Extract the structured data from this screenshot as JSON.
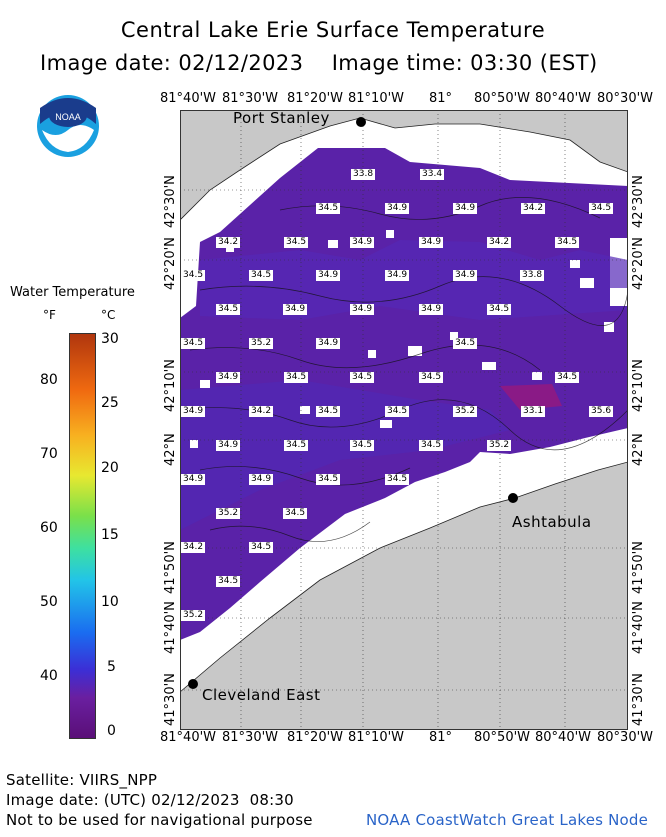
{
  "header": {
    "title": "Central Lake Erie Surface Temperature",
    "image_date_label": "Image date: 02/12/2023",
    "image_time_label": "Image time: 03:30 (EST)"
  },
  "logo": {
    "text": "NOAA",
    "icon": "noaa-logo-icon"
  },
  "axes": {
    "lon_ticks": [
      "81°40'W",
      "81°30'W",
      "81°20'W",
      "81°10'W",
      "81°",
      "80°50'W",
      "80°40'W",
      "80°30'W"
    ],
    "lat_ticks": [
      "42°30'N",
      "42°20'N",
      "42°10'N",
      "42°N",
      "41°50'N",
      "41°40'N",
      "41°30'N"
    ]
  },
  "cities": [
    "Port Stanley",
    "Ashtabula",
    "Cleveland East"
  ],
  "temperature_labels": [
    "33.8",
    "33.4",
    "34.5",
    "34.9",
    "34.9",
    "34.2",
    "34.5",
    "34.2",
    "34.5",
    "34.9",
    "34.9",
    "34.2",
    "34.5",
    "34.5",
    "34.5",
    "34.9",
    "34.9",
    "34.9",
    "33.8",
    "34.5",
    "34.9",
    "34.9",
    "34.9",
    "34.5",
    "34.5",
    "35.2",
    "34.9",
    "34.5",
    "34.9",
    "34.5",
    "34.5",
    "34.5",
    "34.5",
    "34.9",
    "34.2",
    "34.5",
    "34.5",
    "35.2",
    "33.1",
    "35.6",
    "34.9",
    "34.5",
    "34.5",
    "34.5",
    "35.2",
    "34.9",
    "34.9",
    "34.5",
    "34.5",
    "35.2",
    "34.5",
    "34.2",
    "34.5",
    "34.5",
    "35.2"
  ],
  "legend": {
    "title": "Water Temperature",
    "unit_f": "°F",
    "unit_c": "°C",
    "f_ticks": [
      "80",
      "70",
      "60",
      "50",
      "40"
    ],
    "c_ticks": [
      "30",
      "25",
      "20",
      "15",
      "10",
      "5",
      "0"
    ]
  },
  "footer": {
    "satellite": "Satellite: VIIRS_NPP",
    "utc_date": "Image date: (UTC) 02/12/2023  08:30",
    "warning": "Not to be used for navigational purpose",
    "credit": "NOAA CoastWatch Great Lakes Node"
  },
  "colors": {
    "water": "#5a22a8",
    "land": "#c8c8c8",
    "credit": "#2a64c8"
  }
}
